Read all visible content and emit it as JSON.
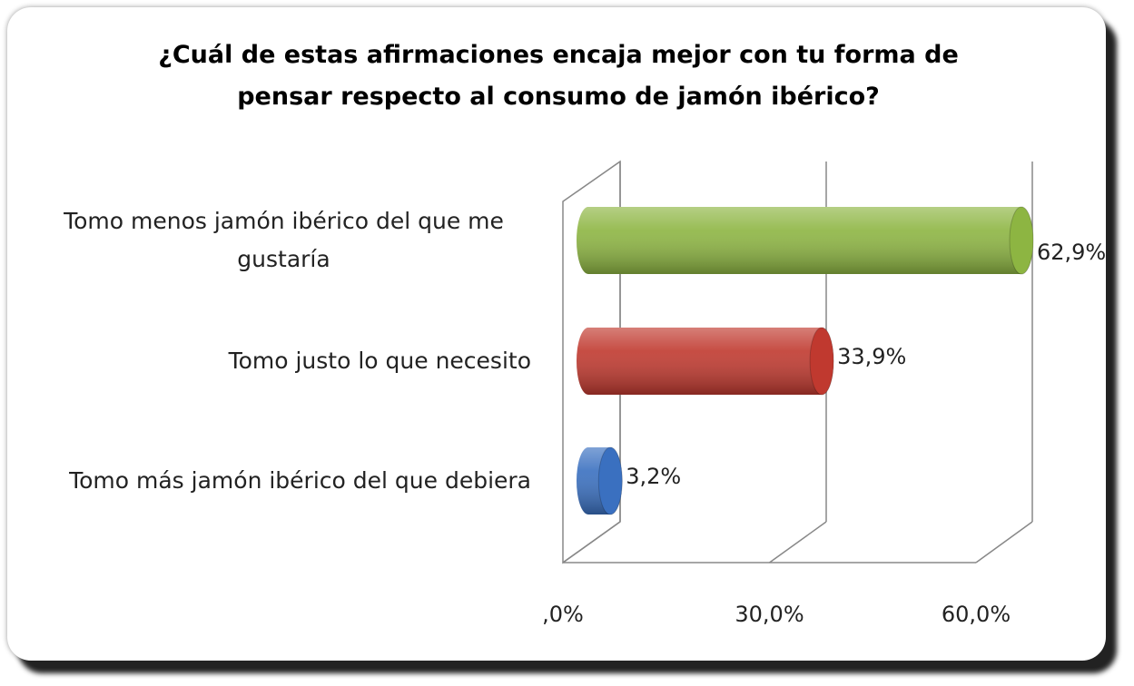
{
  "chart_data": {
    "type": "bar",
    "orientation": "horizontal",
    "title": "¿Cuál de estas afirmaciones encaja mejor con tu forma de pensar respecto al consumo de jamón ibérico?",
    "categories": [
      "Tomo menos jamón ibérico del que me gustaría",
      "Tomo justo lo que necesito",
      "Tomo más jamón ibérico del que debiera"
    ],
    "values": [
      62.9,
      33.9,
      3.2
    ],
    "value_labels": [
      "62,9%",
      "33,9%",
      "3,2%"
    ],
    "colors": [
      "#8db542",
      "#c0392f",
      "#3a70c0"
    ],
    "xlim": [
      0,
      60
    ],
    "xticks": [
      {
        "value": 0,
        "label": ",0%"
      },
      {
        "value": 30,
        "label": "30,0%"
      },
      {
        "value": 60,
        "label": "60,0%"
      }
    ],
    "grid": true
  }
}
